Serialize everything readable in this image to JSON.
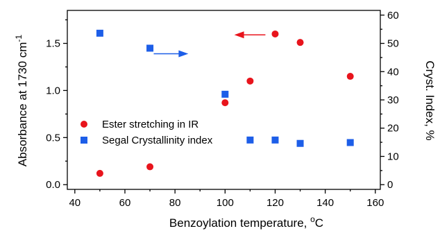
{
  "chart_data": {
    "type": "scatter",
    "xlabel": "Benzoylation temperature, ",
    "xlabel_sup": "o",
    "xlabel_unit": "C",
    "ylabel": "Absorbance at 1730 cm",
    "ylabel_sup": "-1",
    "y2label": "Cryst. Index, %",
    "xlim": [
      37,
      162
    ],
    "ylim": [
      -0.05,
      1.85
    ],
    "y2lim": [
      -1.667,
      61.667
    ],
    "x_ticks": [
      40,
      60,
      80,
      100,
      120,
      140,
      160
    ],
    "y_ticks": [
      0.0,
      0.5,
      1.0,
      1.5
    ],
    "y_tick_labels": [
      "0.0",
      "0.5",
      "1.0",
      "1.5"
    ],
    "y2_ticks": [
      0,
      10,
      20,
      30,
      40,
      50,
      60
    ],
    "grid": false,
    "legend_position": "center-left",
    "colors": {
      "ester": "#e8141c",
      "segal": "#1d5ee8",
      "axis": "#000000"
    },
    "series": [
      {
        "name": "Ester stretching in IR",
        "axis": "left",
        "marker": "circle",
        "x": [
          50,
          70,
          100,
          110,
          120,
          130,
          150
        ],
        "y": [
          0.12,
          0.19,
          0.87,
          1.1,
          1.6,
          1.51,
          1.15
        ]
      },
      {
        "name": "Segal Crystallinity index",
        "axis": "right",
        "marker": "square",
        "x": [
          50,
          70,
          100,
          110,
          120,
          130,
          150
        ],
        "y": [
          53.6,
          48.3,
          32.0,
          15.8,
          15.8,
          14.6,
          14.9
        ]
      }
    ],
    "annotations": [
      {
        "type": "arrow",
        "direction": "left",
        "points_to": "left-axis",
        "color": "#e8141c",
        "near_x": 115,
        "near_y": 1.59
      },
      {
        "type": "arrow",
        "direction": "right",
        "points_to": "right-axis",
        "color": "#1d5ee8",
        "near_x": 80,
        "near_y": 1.39
      }
    ]
  }
}
